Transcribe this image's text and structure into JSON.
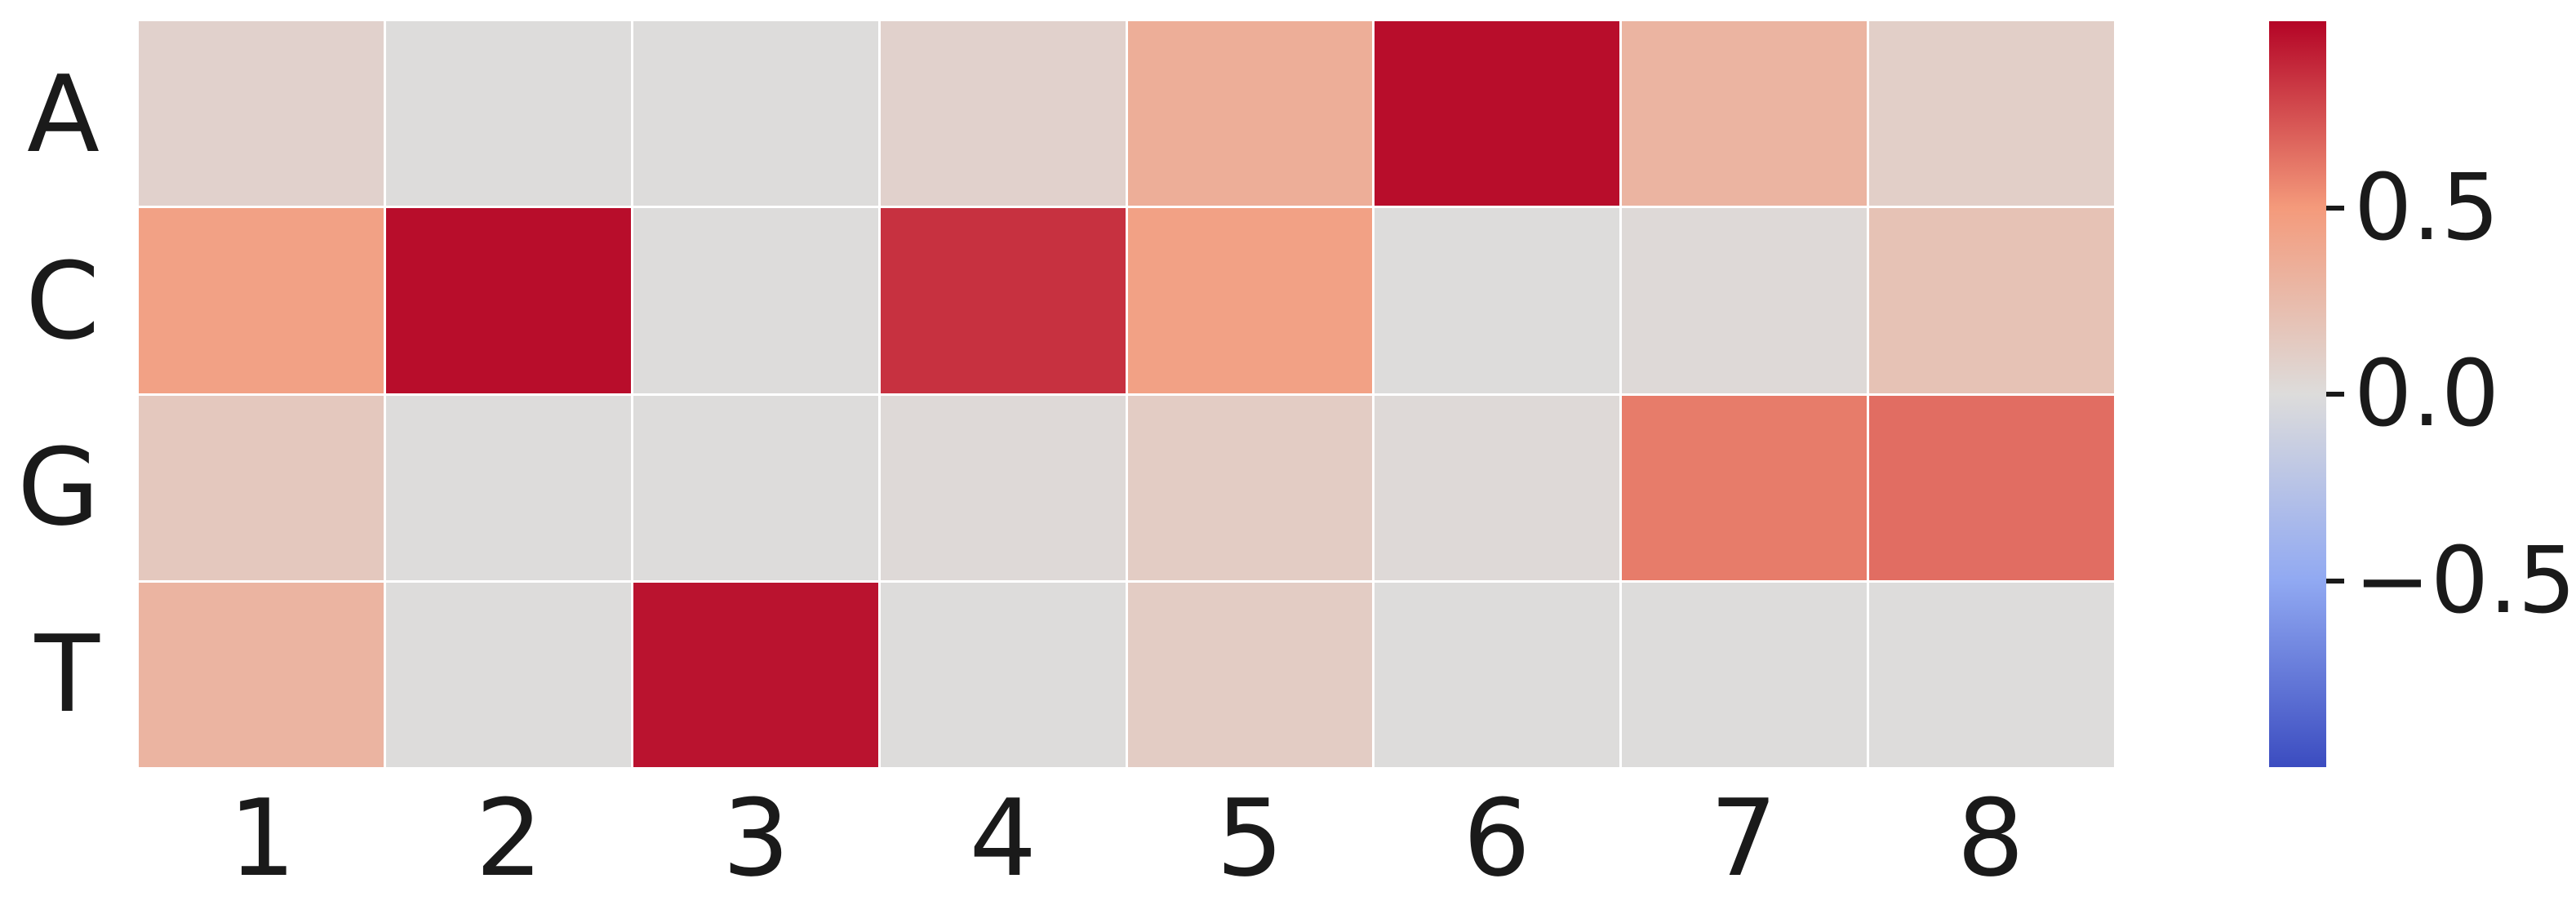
{
  "chart_data": {
    "type": "heatmap",
    "title": "",
    "rows": [
      "A",
      "C",
      "G",
      "T"
    ],
    "columns": [
      "1",
      "2",
      "3",
      "4",
      "5",
      "6",
      "7",
      "8"
    ],
    "values": [
      [
        0.08,
        0.0,
        0.0,
        0.08,
        0.35,
        0.97,
        0.3,
        0.1
      ],
      [
        0.45,
        0.97,
        0.0,
        0.85,
        0.45,
        0.0,
        0.02,
        0.2
      ],
      [
        0.15,
        0.0,
        0.0,
        0.02,
        0.12,
        0.02,
        0.6,
        0.65
      ],
      [
        0.3,
        0.0,
        0.95,
        0.0,
        0.12,
        0.0,
        0.0,
        0.0
      ]
    ],
    "colormap": "coolwarm",
    "vmin": -1,
    "vmax": 1,
    "grid_line_color": "#ffffff",
    "background_color": "#ffffff",
    "colorbar": {
      "position": "right",
      "ticks": [
        {
          "label": "0.5",
          "value": 0.5
        },
        {
          "label": "0.0",
          "value": 0.0
        },
        {
          "label": "−0.5",
          "value": -0.5
        }
      ],
      "top_color": "#b40426",
      "mid_color": "#dddcdb",
      "bottom_color": "#3b4cc0"
    }
  }
}
